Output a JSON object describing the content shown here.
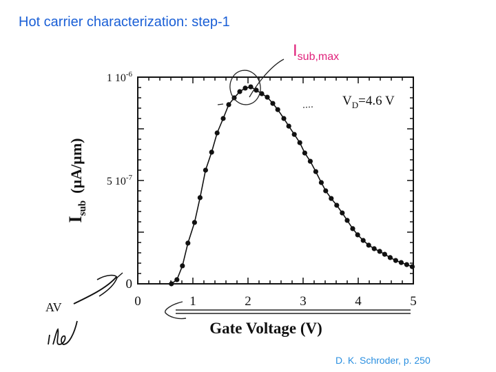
{
  "slide": {
    "title": "Hot carrier characterization: step-1",
    "citation": "D. K. Schroder, p. 250",
    "annotation": {
      "main": "I",
      "subscript": "sub,max",
      "color": "#e0207a"
    },
    "title_color": "#1a5fd6",
    "citation_color": "#2a8fe0"
  },
  "chart_data": {
    "type": "line",
    "title": "",
    "xlabel": "Gate Voltage (V)",
    "ylabel": "I_sub (µA/µm)",
    "ylabel_main": "I",
    "ylabel_sub": "sub",
    "ylabel_units": "(µA/µm)",
    "xlim": [
      0,
      5
    ],
    "ylim": [
      0,
      1e-06
    ],
    "x_ticks": [
      "0",
      "1",
      "2",
      "3",
      "4",
      "5"
    ],
    "y_ticks": [
      {
        "value": 0,
        "label": "0"
      },
      {
        "value": 5e-07,
        "label": "5 10",
        "exp": "-7"
      },
      {
        "value": 1e-06,
        "label": "1 10",
        "exp": "-6"
      }
    ],
    "legend_label": "V_D=4.6 V",
    "legend_main": "V",
    "legend_sub": "D",
    "legend_rest": "=4.6 V",
    "grid": false,
    "series": [
      {
        "name": "V_D=4.6 V",
        "marker": "filled-circle",
        "x": [
          0.61,
          0.71,
          0.81,
          0.91,
          1.03,
          1.13,
          1.23,
          1.34,
          1.44,
          1.55,
          1.65,
          1.75,
          1.85,
          1.95,
          2.05,
          2.15,
          2.25,
          2.35,
          2.45,
          2.54,
          2.65,
          2.74,
          2.84,
          2.94,
          3.03,
          3.13,
          3.23,
          3.33,
          3.41,
          3.51,
          3.61,
          3.71,
          3.8,
          3.9,
          3.99,
          4.09,
          4.19,
          4.29,
          4.39,
          4.48,
          4.58,
          4.68,
          4.78,
          4.88,
          4.98
        ],
        "values": [
          0.0,
          2e-08,
          8.7e-08,
          1.97e-07,
          2.97e-07,
          4.17e-07,
          5.5e-07,
          6.37e-07,
          7.3e-07,
          8e-07,
          8.67e-07,
          9e-07,
          9.3e-07,
          9.47e-07,
          9.53e-07,
          9.37e-07,
          9.2e-07,
          9.03e-07,
          8.73e-07,
          8.43e-07,
          8e-07,
          7.63e-07,
          7.23e-07,
          6.83e-07,
          6.33e-07,
          5.93e-07,
          5.43e-07,
          4.9e-07,
          4.5e-07,
          4.13e-07,
          3.8e-07,
          3.43e-07,
          3.07e-07,
          2.67e-07,
          2.37e-07,
          2.1e-07,
          1.87e-07,
          1.7e-07,
          1.57e-07,
          1.43e-07,
          1.27e-07,
          1.13e-07,
          1.03e-07,
          9.3e-08,
          8.3e-08
        ]
      }
    ]
  }
}
